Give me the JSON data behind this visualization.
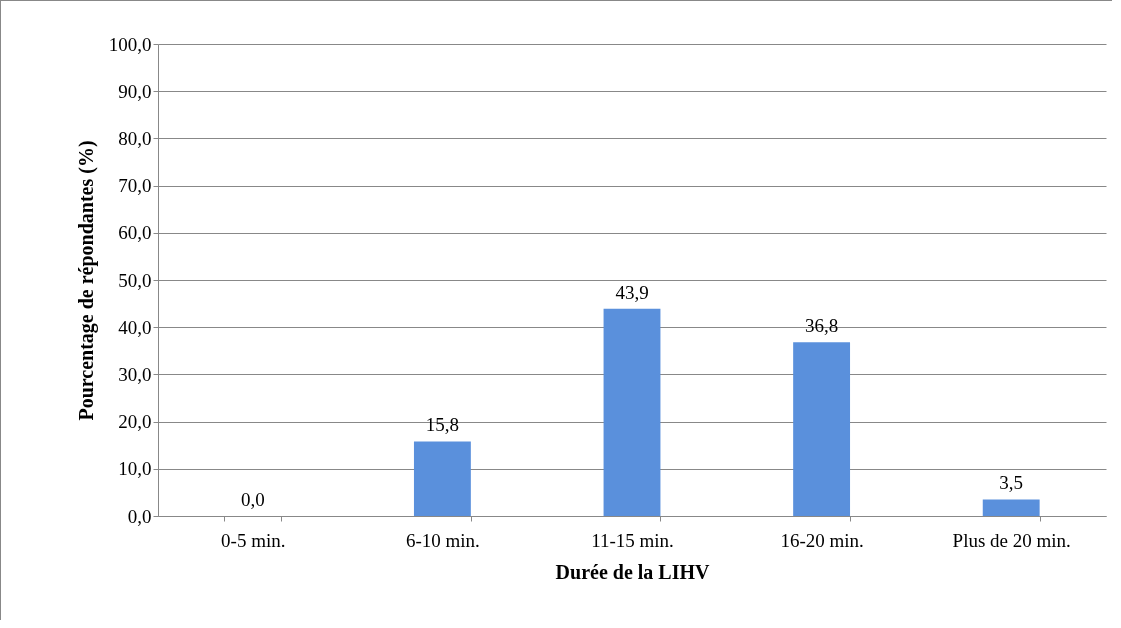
{
  "chart_data": {
    "type": "bar",
    "xlabel": "Durée de la LIHV",
    "ylabel": "Pourcentage de répondantes (%)",
    "categories": [
      "0-5 min.",
      "6-10 min.",
      "11-15 min.",
      "16-20 min.",
      "Plus de 20 min."
    ],
    "values": [
      0.0,
      15.8,
      43.9,
      36.8,
      3.5
    ],
    "value_labels": [
      "0,0",
      "15,8",
      "43,9",
      "36,8",
      "3,5"
    ],
    "color": "#5a90dc",
    "ylim": [
      0,
      100
    ],
    "yticks": [
      {
        "value": 0,
        "label": "0,0"
      },
      {
        "value": 10,
        "label": "10,0"
      },
      {
        "value": 20,
        "label": "20,0"
      },
      {
        "value": 30,
        "label": "30,0"
      },
      {
        "value": 40,
        "label": "40,0"
      },
      {
        "value": 50,
        "label": "50,0"
      },
      {
        "value": 60,
        "label": "60,0"
      },
      {
        "value": 70,
        "label": "70,0"
      },
      {
        "value": 80,
        "label": "80,0"
      },
      {
        "value": 90,
        "label": "90,0"
      },
      {
        "value": 100,
        "label": "100,0"
      }
    ],
    "grid": "y"
  }
}
